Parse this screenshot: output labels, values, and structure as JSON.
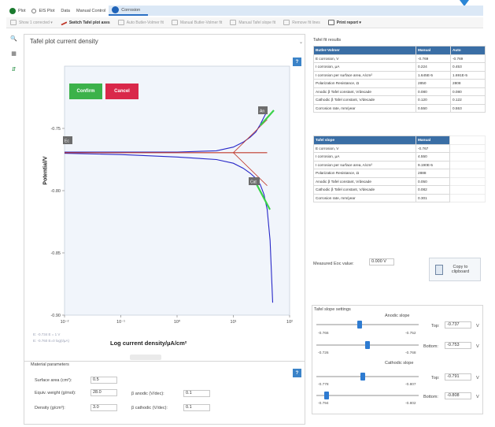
{
  "tabs": [
    {
      "label": "Plot"
    },
    {
      "label": "EIS Plot"
    },
    {
      "label": "Data"
    },
    {
      "label": "Manual Control"
    },
    {
      "label": "Corrosion"
    }
  ],
  "toolbar": {
    "show_label": "Show 1 corrected",
    "switch_label": "Switch Tafel plot axes",
    "auto_label": "Auto Butler-Volmer fit",
    "manual_bv_label": "Manual Butler-Volmer fit",
    "manual_tafel_label": "Manual Tafel slope fit",
    "remove_label": "Remove fit lines",
    "print_label": "Print report"
  },
  "plot": {
    "title": "Tafel plot current density",
    "help": "?",
    "confirm": "Confirm",
    "cancel": "Cancel",
    "ylabel": "Potential/V",
    "xlabel": "Log current density/µA/cm²",
    "coord1": "E: -0.734 E = 1 V",
    "coord2": "E: -0.760 E=0 log(I/µA)",
    "marker_ec": "Ec",
    "marker_an": "An",
    "marker_cat": "Cat"
  },
  "chart_data": {
    "type": "line",
    "x_scale": "log",
    "xlim": [
      0.01,
      100
    ],
    "ylim": [
      -0.9,
      -0.7
    ],
    "xticks": [
      "10⁻²",
      "10⁻¹",
      "10⁰",
      "10¹",
      "10²"
    ],
    "yticks": [
      "-0.75",
      "-0.80",
      "-0.85",
      "-0.90"
    ],
    "grid": false,
    "series": [
      {
        "x": [
          0.01,
          0.1,
          1,
          5,
          10,
          15,
          20,
          25,
          30,
          35,
          40
        ],
        "y": [
          -0.769,
          -0.769,
          -0.769,
          -0.768,
          -0.765,
          -0.761,
          -0.757,
          -0.753,
          -0.747,
          -0.741,
          -0.736
        ]
      },
      {
        "x": [
          0.01,
          0.1,
          1,
          5,
          10,
          15,
          20,
          25,
          30,
          35,
          40,
          45,
          50
        ],
        "y": [
          -0.77,
          -0.771,
          -0.773,
          -0.775,
          -0.778,
          -0.782,
          -0.786,
          -0.79,
          -0.795,
          -0.803,
          -0.815,
          -0.84,
          -0.89
        ]
      },
      {
        "x": [
          0.01,
          1,
          10,
          20,
          40
        ],
        "y": [
          -0.7695,
          -0.7695,
          -0.7695,
          -0.7695,
          -0.7695
        ]
      },
      {
        "x": [
          10,
          40
        ],
        "y": [
          -0.7695,
          -0.743
        ]
      },
      {
        "x": [
          10,
          40
        ],
        "y": [
          -0.7695,
          -0.796
        ]
      }
    ]
  },
  "material": {
    "title": "Material parameters",
    "help": "?",
    "surface_label": "Surface area (cm²):",
    "surface_value": "0.5",
    "equiv_label": "Equiv. weight (g/mol):",
    "equiv_value": "28.0",
    "density_label": "Density (g/cm³):",
    "density_value": "3.0",
    "banodic_label": "β anodic (V/dec):",
    "banodic_value": "0.1",
    "bcathodic_label": "β cathodic (V/dec):",
    "bcathodic_value": "0.1"
  },
  "fit": {
    "title": "Tafel fit results",
    "bv_header": [
      "Butler-Volmer",
      "Manual",
      "Auto"
    ],
    "bv_rows": [
      [
        "E corrosion, V",
        "-0.769",
        "-0.769"
      ],
      [
        "I corrosion, µA",
        "0.224",
        "0.453"
      ],
      [
        "I corrosion per surface area, A/cm²",
        "1.645E-5",
        "1.691E-5"
      ],
      [
        "Polarization Resistance, Ω",
        "2850",
        "2808"
      ],
      [
        "Anodic β Tafel constant, V/decade",
        "0.080",
        "0.080"
      ],
      [
        "Cathodic β Tafel constant, V/decade",
        "0.120",
        "0.122"
      ],
      [
        "Corrosion rate, mm/year",
        "0.550",
        "0.553"
      ]
    ],
    "ts_header": [
      "Tafel slope",
      "Manual"
    ],
    "ts_rows": [
      [
        "E corrosion, V",
        "-0.767"
      ],
      [
        "I corrosion, µA",
        "4.550"
      ],
      [
        "I corrosion per surface area, A/cm²",
        "9.190E-5"
      ],
      [
        "Polarization Resistance, Ω",
        "2888"
      ],
      [
        "Anodic β Tafel constant, V/decade",
        "0.050"
      ],
      [
        "Cathodic β Tafel constant, V/decade",
        "0.082"
      ],
      [
        "Corrosion rate, mm/year",
        "0.301"
      ]
    ],
    "tec_label": "Measured Eoc value:",
    "tec_value": "0.000 V",
    "copy_label": "Copy to clipboard"
  },
  "slopes": {
    "title": "Tafel slope settings",
    "anodic_title": "Anodic slope",
    "cathodic_title": "Cathodic slope",
    "top_label": "Top:",
    "bottom_label": "Bottom:",
    "unit": "V",
    "anodic_top_value": "-0.737",
    "anodic_bottom_value": "-0.753",
    "anodic_min1": "-0.766",
    "anodic_max1": "-0.752",
    "anodic_min2": "-0.726",
    "anodic_max2": "-0.768",
    "cathodic_top_value": "-0.791",
    "cathodic_bottom_value": "-0.808",
    "cathodic_min1": "-0.778",
    "cathodic_max1": "-0.807",
    "cathodic_min2": "-0.794",
    "cathodic_max2": "-0.802",
    "anodic_top_pos": 0.42,
    "anodic_bottom_pos": 0.5,
    "cathodic_top_pos": 0.45,
    "cathodic_bottom_pos": 0.1
  }
}
